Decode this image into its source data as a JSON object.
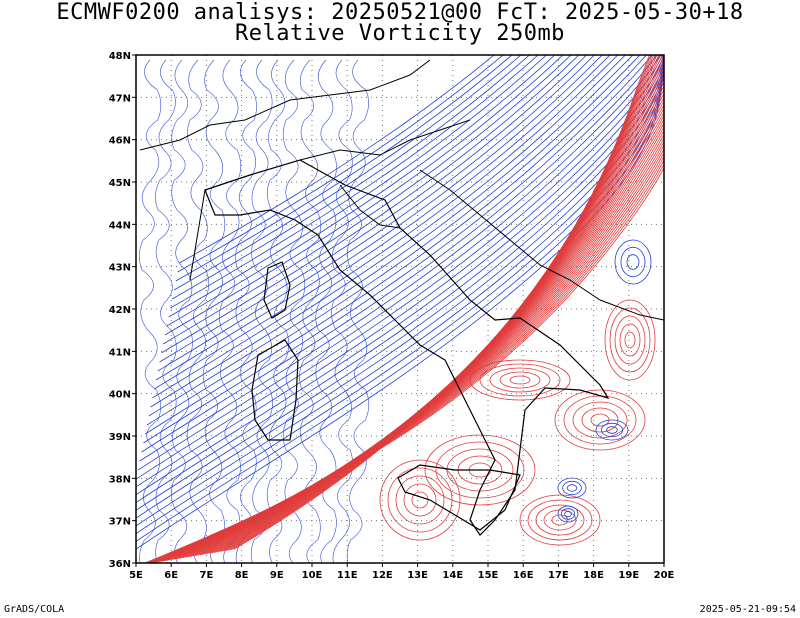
{
  "header": {
    "title_line1": "ECMWF0200 analisys: 20250521@00 FcT: 2025-05-30+18",
    "title_line2": "Relative Vorticity 250mb"
  },
  "map": {
    "lon_range": [
      5,
      20
    ],
    "lat_range": [
      36,
      48
    ],
    "lon_labels": [
      "5E",
      "6E",
      "7E",
      "8E",
      "9E",
      "10E",
      "11E",
      "12E",
      "13E",
      "14E",
      "15E",
      "16E",
      "17E",
      "18E",
      "19E",
      "20E"
    ],
    "lat_labels": [
      "36N",
      "37N",
      "38N",
      "39N",
      "40N",
      "41N",
      "42N",
      "43N",
      "44N",
      "45N",
      "46N",
      "47N",
      "48N"
    ],
    "colors": {
      "negative_vorticity": "#1f3fd6",
      "positive_vorticity": "#e23a3a",
      "coastline": "#000000",
      "grid": "#777777"
    }
  },
  "footer": {
    "left": "GrADS/COLA",
    "right": "2025-05-21-09:54"
  }
}
